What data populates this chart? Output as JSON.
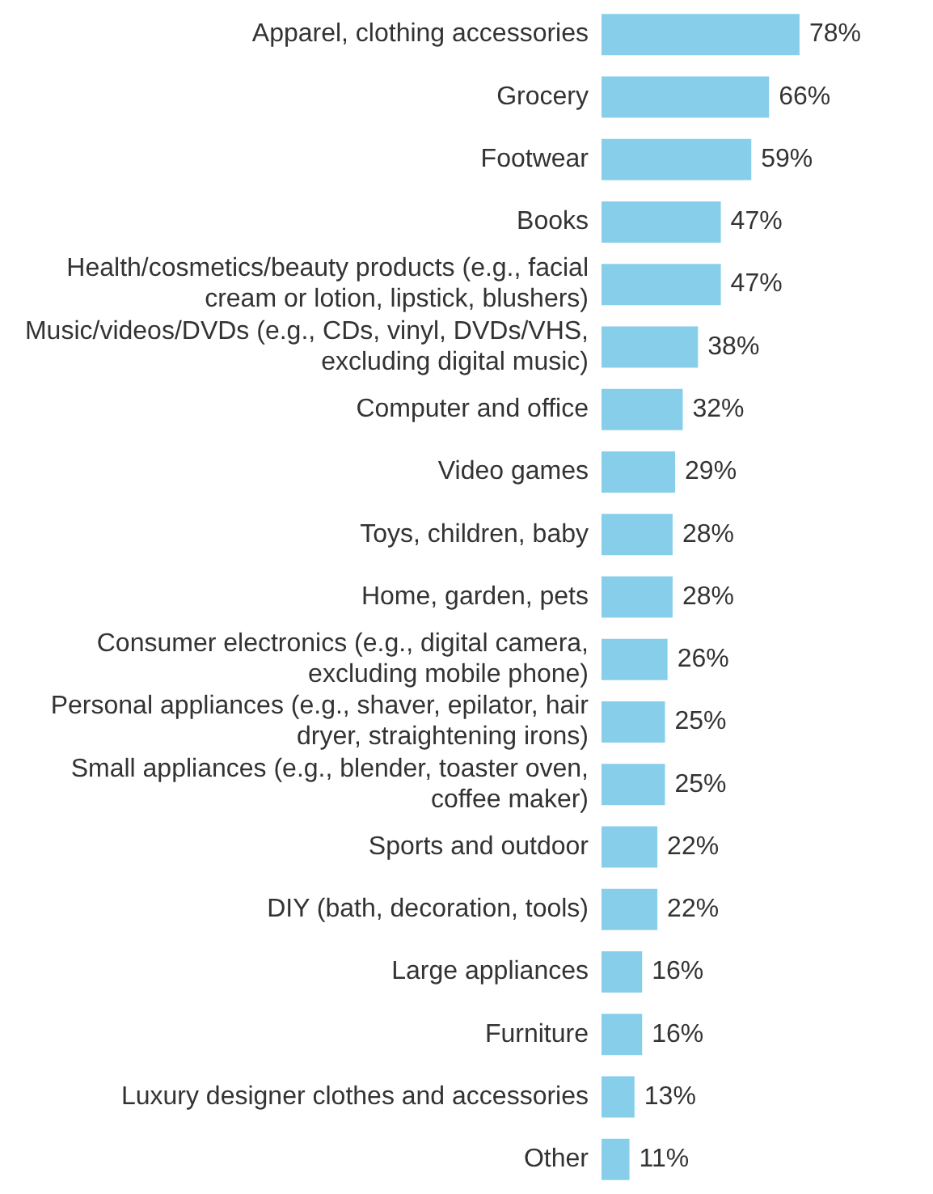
{
  "chart_data": {
    "type": "bar",
    "orientation": "horizontal",
    "categories": [
      "Apparel, clothing accessories",
      "Grocery",
      "Footwear",
      "Books",
      "Health/cosmetics/beauty products (e.g., facial cream or lotion, lipstick, blushers)",
      "Music/videos/DVDs (e.g., CDs, vinyl, DVDs/VHS, excluding digital music)",
      "Computer and office",
      "Video games",
      "Toys, children, baby",
      "Home, garden, pets",
      "Consumer electronics (e.g., digital camera, excluding mobile phone)",
      "Personal appliances (e.g., shaver, epilator, hair dryer, straightening irons)",
      "Small appliances (e.g., blender, toaster oven, coffee maker)",
      "Sports and outdoor",
      "DIY (bath, decoration, tools)",
      "Large appliances",
      "Furniture",
      "Luxury designer clothes and accessories",
      "Other"
    ],
    "values": [
      78,
      66,
      59,
      47,
      47,
      38,
      32,
      29,
      28,
      28,
      26,
      25,
      25,
      22,
      22,
      16,
      16,
      13,
      11
    ],
    "value_labels": [
      "78%",
      "66%",
      "59%",
      "47%",
      "47%",
      "38%",
      "32%",
      "29%",
      "28%",
      "28%",
      "26%",
      "25%",
      "25%",
      "22%",
      "22%",
      "16%",
      "16%",
      "13%",
      "11%"
    ],
    "color": "#87ceeb",
    "legend": false
  }
}
